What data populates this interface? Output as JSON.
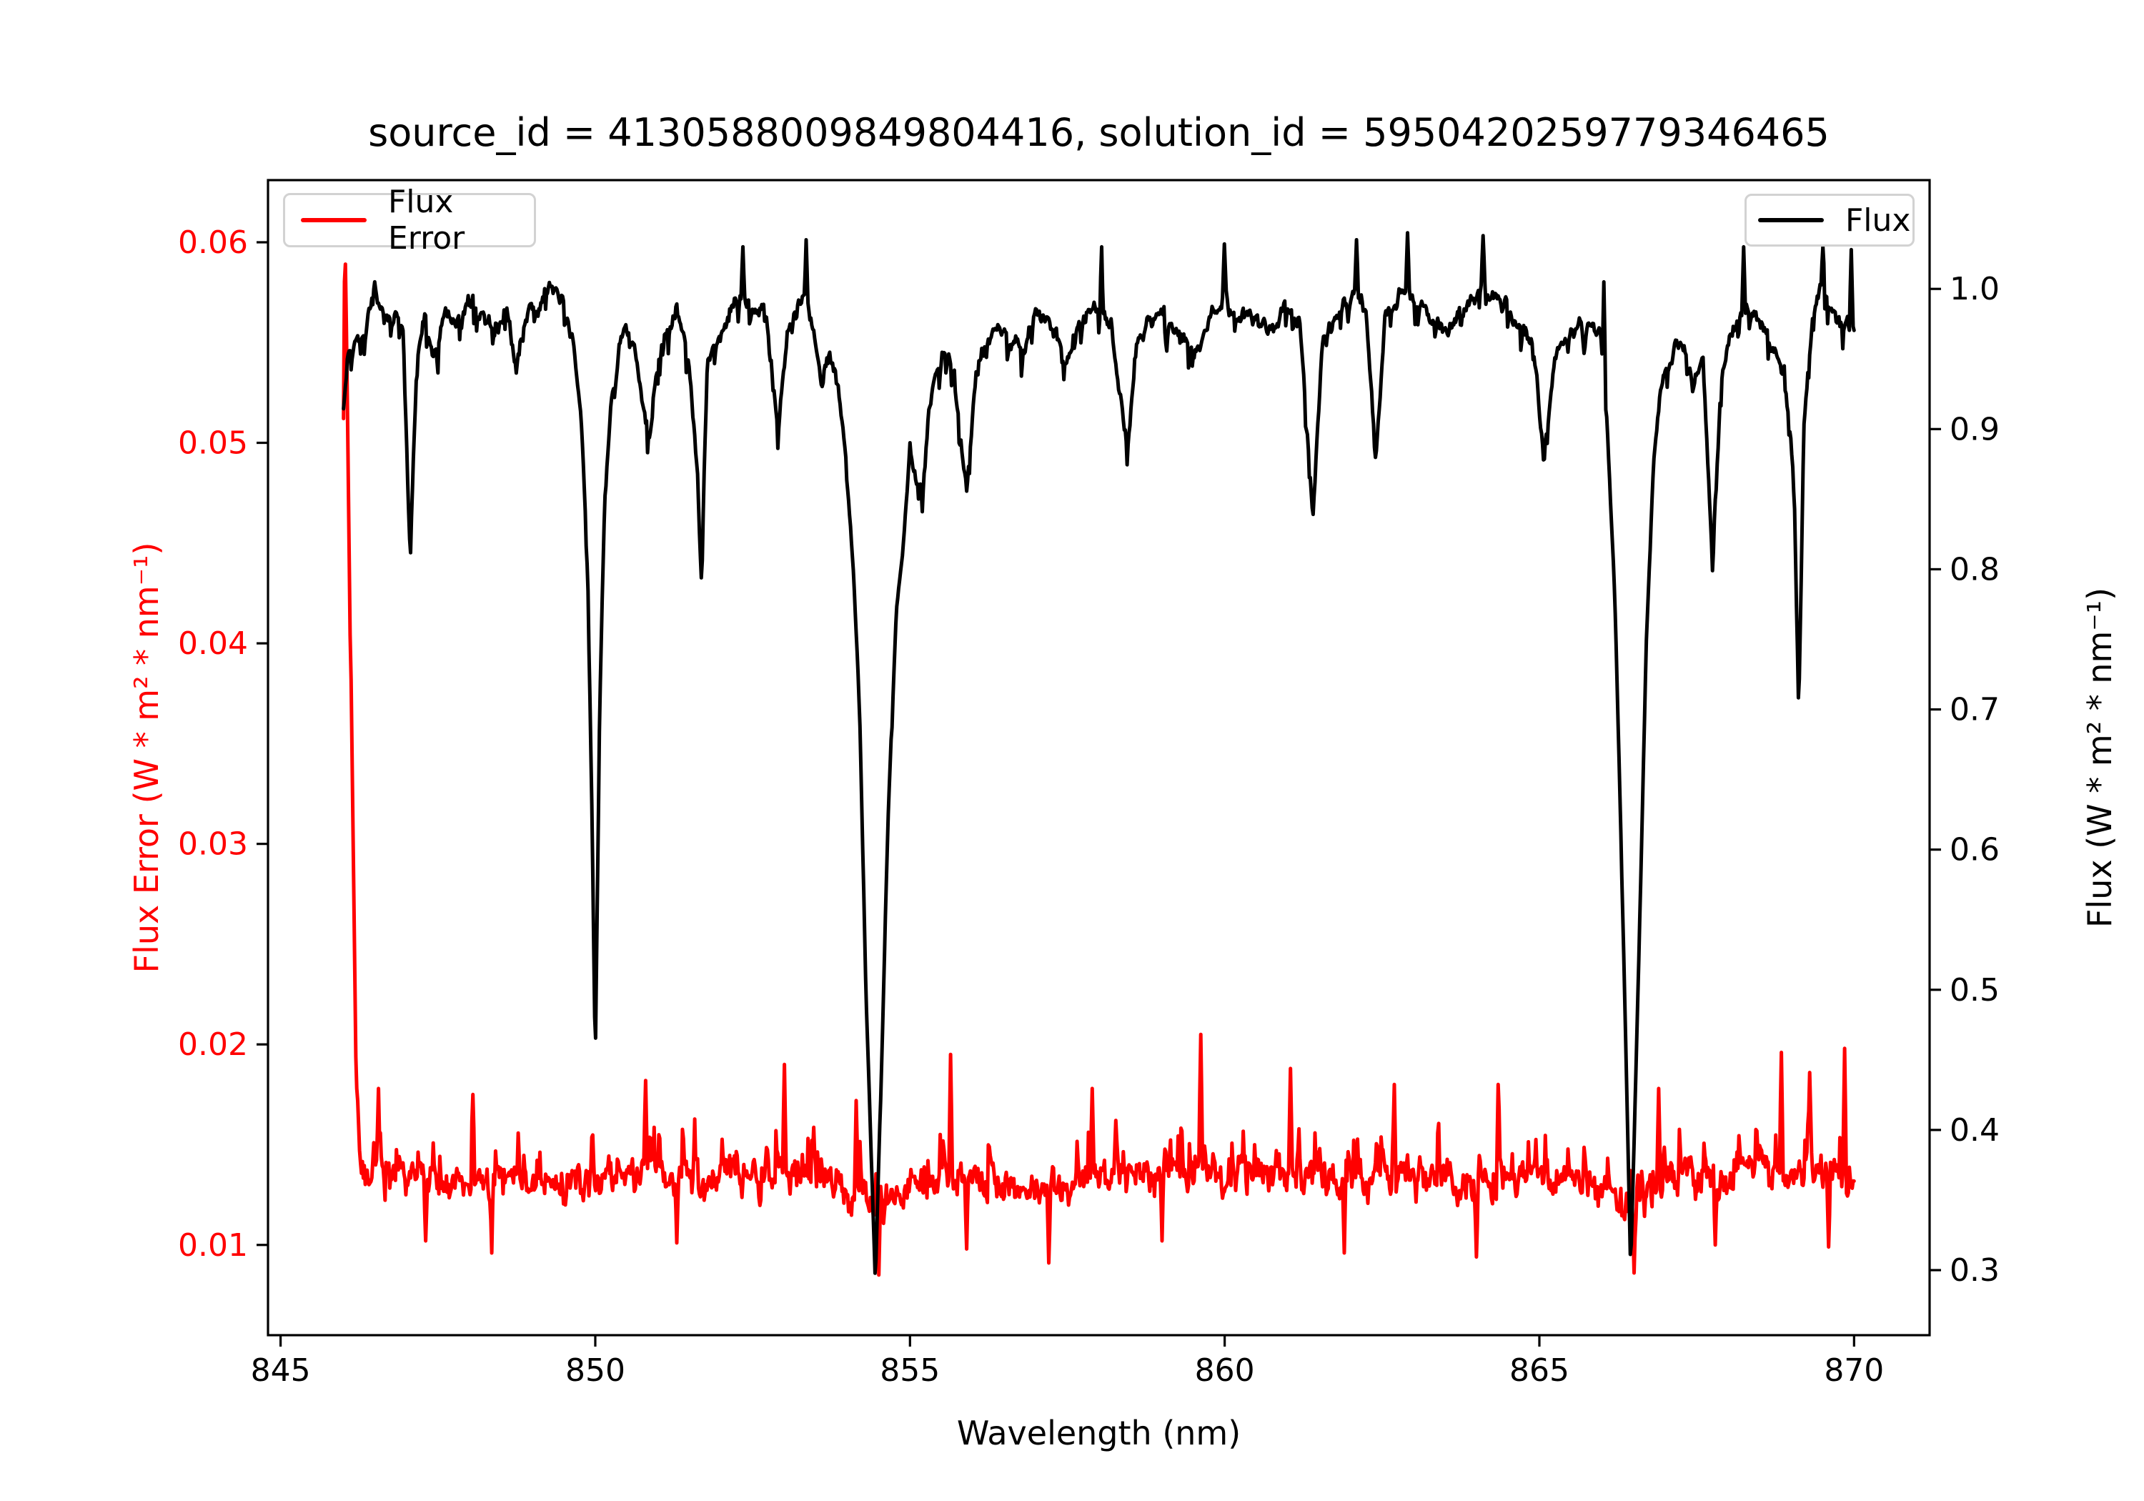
{
  "title": "source_id = 4130588009849804416, solution_id = 5950420259779346465",
  "legend": {
    "flux_error": {
      "label": "Flux Error",
      "color": "#ff0000"
    },
    "flux": {
      "label": "Flux",
      "color": "#000000"
    }
  },
  "axes": {
    "xlabel": "Wavelength (nm)",
    "ylabel_left": "Flux Error (W * m² * nm⁻¹)",
    "ylabel_right": "Flux (W * m² * nm⁻¹)",
    "left_axis_color": "#ff0000",
    "right_axis_color": "#000000",
    "spine_color": "#000000"
  },
  "chart_data": {
    "type": "line",
    "title": "source_id = 4130588009849804416, solution_id = 5950420259779346465",
    "xlabel": "Wavelength (nm)",
    "xlim": [
      844.8,
      871.2
    ],
    "ylim_left": [
      0.0055,
      0.0631
    ],
    "ylim_right": [
      0.2536,
      1.0776
    ],
    "xticks": [
      845,
      850,
      855,
      860,
      865,
      870
    ],
    "yticks_left": [
      0.01,
      0.02,
      0.03,
      0.04,
      0.05,
      0.06
    ],
    "yticks_right": [
      0.3,
      0.4,
      0.5,
      0.6,
      0.7,
      0.8,
      0.9,
      1.0
    ],
    "x_range_data": [
      846.0,
      870.0
    ],
    "absorption_line_centers_nm": [
      850.0,
      854.45,
      866.45
    ],
    "legend_entries": [
      "Flux Error",
      "Flux"
    ],
    "series": [
      {
        "name": "Flux Error",
        "color": "#ff0000",
        "yaxis": "left",
        "anchors": [
          [
            846.0,
            0.0513
          ],
          [
            846.02,
            0.0605
          ],
          [
            846.04,
            0.057
          ],
          [
            846.06,
            0.052
          ],
          [
            846.08,
            0.047
          ],
          [
            846.1,
            0.0415
          ],
          [
            846.12,
            0.038
          ],
          [
            846.14,
            0.033
          ],
          [
            846.17,
            0.026
          ],
          [
            846.2,
            0.0185
          ],
          [
            846.25,
            0.0148
          ],
          [
            846.3,
            0.0138
          ],
          [
            846.5,
            0.0133
          ],
          [
            847.0,
            0.0133
          ],
          [
            847.5,
            0.0131
          ],
          [
            848.0,
            0.0129
          ],
          [
            848.5,
            0.0133
          ],
          [
            849.0,
            0.0133
          ],
          [
            849.5,
            0.0131
          ],
          [
            850.0,
            0.013
          ],
          [
            850.5,
            0.0134
          ],
          [
            851.0,
            0.0136
          ],
          [
            851.5,
            0.0133
          ],
          [
            852.0,
            0.0132
          ],
          [
            852.5,
            0.0135
          ],
          [
            853.0,
            0.0136
          ],
          [
            853.5,
            0.0132
          ],
          [
            854.0,
            0.0128
          ],
          [
            854.45,
            0.0118
          ],
          [
            855.0,
            0.0128
          ],
          [
            855.5,
            0.0133
          ],
          [
            856.0,
            0.0134
          ],
          [
            856.5,
            0.0131
          ],
          [
            857.0,
            0.0128
          ],
          [
            857.5,
            0.0131
          ],
          [
            858.0,
            0.0133
          ],
          [
            858.5,
            0.0134
          ],
          [
            859.0,
            0.0135
          ],
          [
            859.5,
            0.0137
          ],
          [
            860.0,
            0.0136
          ],
          [
            860.5,
            0.0134
          ],
          [
            861.0,
            0.0136
          ],
          [
            861.5,
            0.0133
          ],
          [
            862.0,
            0.0132
          ],
          [
            862.5,
            0.0134
          ],
          [
            863.0,
            0.0133
          ],
          [
            863.5,
            0.0132
          ],
          [
            864.0,
            0.0131
          ],
          [
            864.5,
            0.0133
          ],
          [
            865.0,
            0.0134
          ],
          [
            865.5,
            0.0132
          ],
          [
            866.0,
            0.0128
          ],
          [
            866.45,
            0.0115
          ],
          [
            867.0,
            0.0132
          ],
          [
            867.5,
            0.0134
          ],
          [
            868.0,
            0.0135
          ],
          [
            868.5,
            0.0136
          ],
          [
            869.0,
            0.0137
          ],
          [
            869.5,
            0.0136
          ],
          [
            870.0,
            0.0135
          ]
        ],
        "noise_envelope": [
          [
            846.0,
            0.0004
          ],
          [
            846.22,
            0.0012
          ],
          [
            846.35,
            0.0022
          ],
          [
            870.0,
            0.0022
          ]
        ],
        "spikes": [
          [
            846.55,
            0.0178
          ],
          [
            848.05,
            0.0175
          ],
          [
            850.8,
            0.0182
          ],
          [
            853.0,
            0.019
          ],
          [
            854.15,
            0.0172
          ],
          [
            855.65,
            0.0195
          ],
          [
            857.9,
            0.0178
          ],
          [
            859.62,
            0.0205
          ],
          [
            861.05,
            0.0188
          ],
          [
            862.7,
            0.018
          ],
          [
            864.35,
            0.018
          ],
          [
            866.9,
            0.0178
          ],
          [
            868.85,
            0.0196
          ],
          [
            869.3,
            0.0186
          ],
          [
            869.85,
            0.0198
          ]
        ],
        "dips": [
          [
            847.3,
            0.0102
          ],
          [
            848.35,
            0.0096
          ],
          [
            851.3,
            0.0101
          ],
          [
            854.5,
            0.0085
          ],
          [
            855.9,
            0.0098
          ],
          [
            857.2,
            0.0091
          ],
          [
            859.0,
            0.0102
          ],
          [
            861.9,
            0.0096
          ],
          [
            864.0,
            0.0094
          ],
          [
            866.5,
            0.0086
          ],
          [
            867.8,
            0.01
          ],
          [
            869.6,
            0.0099
          ]
        ]
      },
      {
        "name": "Flux",
        "color": "#000000",
        "yaxis": "right",
        "anchors": [
          [
            846.0,
            0.915
          ],
          [
            846.05,
            0.94
          ],
          [
            846.1,
            0.955
          ],
          [
            846.2,
            0.962
          ],
          [
            846.35,
            0.975
          ],
          [
            846.5,
            1.0
          ],
          [
            846.65,
            0.978
          ],
          [
            846.8,
            0.985
          ],
          [
            846.95,
            0.97
          ],
          [
            847.06,
            0.805
          ],
          [
            847.18,
            0.965
          ],
          [
            847.3,
            0.978
          ],
          [
            847.43,
            0.95
          ],
          [
            847.6,
            0.985
          ],
          [
            847.8,
            0.975
          ],
          [
            848.0,
            0.99
          ],
          [
            848.2,
            0.98
          ],
          [
            848.45,
            0.972
          ],
          [
            848.6,
            0.988
          ],
          [
            848.74,
            0.94
          ],
          [
            848.9,
            0.982
          ],
          [
            849.1,
            0.99
          ],
          [
            849.3,
            1.005
          ],
          [
            849.5,
            0.988
          ],
          [
            849.65,
            0.96
          ],
          [
            849.77,
            0.915
          ],
          [
            849.88,
            0.8
          ],
          [
            849.95,
            0.62
          ],
          [
            850.0,
            0.448
          ],
          [
            850.07,
            0.7
          ],
          [
            850.15,
            0.85
          ],
          [
            850.25,
            0.92
          ],
          [
            850.4,
            0.965
          ],
          [
            850.55,
            0.975
          ],
          [
            850.72,
            0.928
          ],
          [
            850.88,
            0.895
          ],
          [
            851.0,
            0.955
          ],
          [
            851.15,
            0.975
          ],
          [
            851.3,
            0.985
          ],
          [
            851.5,
            0.945
          ],
          [
            851.62,
            0.87
          ],
          [
            851.68,
            0.8
          ],
          [
            851.78,
            0.945
          ],
          [
            851.95,
            0.965
          ],
          [
            852.1,
            0.978
          ],
          [
            852.3,
            0.995
          ],
          [
            852.5,
            0.982
          ],
          [
            852.7,
            0.985
          ],
          [
            852.9,
            0.9
          ],
          [
            853.05,
            0.97
          ],
          [
            853.2,
            0.985
          ],
          [
            853.35,
            0.995
          ],
          [
            853.5,
            0.962
          ],
          [
            853.6,
            0.93
          ],
          [
            853.72,
            0.955
          ],
          [
            853.88,
            0.922
          ],
          [
            854.0,
            0.87
          ],
          [
            854.1,
            0.8
          ],
          [
            854.2,
            0.7
          ],
          [
            854.3,
            0.5
          ],
          [
            854.45,
            0.29
          ],
          [
            854.55,
            0.45
          ],
          [
            854.65,
            0.62
          ],
          [
            854.78,
            0.77
          ],
          [
            854.9,
            0.82
          ],
          [
            855.0,
            0.885
          ],
          [
            855.1,
            0.862
          ],
          [
            855.2,
            0.858
          ],
          [
            855.3,
            0.91
          ],
          [
            855.42,
            0.945
          ],
          [
            855.55,
            0.955
          ],
          [
            855.7,
            0.94
          ],
          [
            855.9,
            0.855
          ],
          [
            856.05,
            0.945
          ],
          [
            856.2,
            0.962
          ],
          [
            856.4,
            0.975
          ],
          [
            856.6,
            0.962
          ],
          [
            856.8,
            0.955
          ],
          [
            857.0,
            0.982
          ],
          [
            857.2,
            0.975
          ],
          [
            857.35,
            0.962
          ],
          [
            857.5,
            0.945
          ],
          [
            857.65,
            0.975
          ],
          [
            857.8,
            0.982
          ],
          [
            858.0,
            0.988
          ],
          [
            858.2,
            0.975
          ],
          [
            858.45,
            0.885
          ],
          [
            858.6,
            0.962
          ],
          [
            858.75,
            0.975
          ],
          [
            859.0,
            0.985
          ],
          [
            859.2,
            0.972
          ],
          [
            859.4,
            0.96
          ],
          [
            859.6,
            0.958
          ],
          [
            859.8,
            0.985
          ],
          [
            860.0,
            0.992
          ],
          [
            860.2,
            0.975
          ],
          [
            860.4,
            0.985
          ],
          [
            860.6,
            0.972
          ],
          [
            860.8,
            0.968
          ],
          [
            861.0,
            0.988
          ],
          [
            861.2,
            0.975
          ],
          [
            861.4,
            0.838
          ],
          [
            861.55,
            0.962
          ],
          [
            861.7,
            0.975
          ],
          [
            861.9,
            0.988
          ],
          [
            862.1,
            0.998
          ],
          [
            862.25,
            0.985
          ],
          [
            862.4,
            0.873
          ],
          [
            862.55,
            0.982
          ],
          [
            862.7,
            0.99
          ],
          [
            862.9,
            1.0
          ],
          [
            863.1,
            0.99
          ],
          [
            863.3,
            0.978
          ],
          [
            863.5,
            0.972
          ],
          [
            863.7,
            0.982
          ],
          [
            863.9,
            0.99
          ],
          [
            864.1,
            1.005
          ],
          [
            864.3,
            0.995
          ],
          [
            864.5,
            0.985
          ],
          [
            864.7,
            0.972
          ],
          [
            864.9,
            0.962
          ],
          [
            865.07,
            0.877
          ],
          [
            865.25,
            0.955
          ],
          [
            865.45,
            0.968
          ],
          [
            865.6,
            0.975
          ],
          [
            865.8,
            0.972
          ],
          [
            865.97,
            0.968
          ],
          [
            866.08,
            0.9
          ],
          [
            866.2,
            0.78
          ],
          [
            866.33,
            0.55
          ],
          [
            866.45,
            0.3
          ],
          [
            866.58,
            0.52
          ],
          [
            866.7,
            0.75
          ],
          [
            866.82,
            0.88
          ],
          [
            866.95,
            0.935
          ],
          [
            867.1,
            0.955
          ],
          [
            867.3,
            0.962
          ],
          [
            867.45,
            0.93
          ],
          [
            867.6,
            0.952
          ],
          [
            867.75,
            0.8
          ],
          [
            867.9,
            0.945
          ],
          [
            868.1,
            0.975
          ],
          [
            868.3,
            0.988
          ],
          [
            868.5,
            0.975
          ],
          [
            868.7,
            0.962
          ],
          [
            868.9,
            0.94
          ],
          [
            869.05,
            0.86
          ],
          [
            869.12,
            0.695
          ],
          [
            869.2,
            0.9
          ],
          [
            869.35,
            0.985
          ],
          [
            869.5,
            1.01
          ],
          [
            869.65,
            0.985
          ],
          [
            869.8,
            0.975
          ],
          [
            869.9,
            0.982
          ],
          [
            870.0,
            0.968
          ]
        ],
        "noise_envelope": [
          [
            846.0,
            0.014
          ],
          [
            849.7,
            0.014
          ],
          [
            849.95,
            0.003
          ],
          [
            850.1,
            0.006
          ],
          [
            850.3,
            0.014
          ],
          [
            853.8,
            0.013
          ],
          [
            854.2,
            0.0035
          ],
          [
            854.75,
            0.006
          ],
          [
            855.1,
            0.01
          ],
          [
            855.4,
            0.014
          ],
          [
            865.9,
            0.012
          ],
          [
            866.25,
            0.0035
          ],
          [
            866.75,
            0.007
          ],
          [
            867.0,
            0.014
          ],
          [
            870.0,
            0.014
          ]
        ],
        "spikes": [
          [
            846.5,
            1.005
          ],
          [
            852.35,
            1.03
          ],
          [
            853.35,
            1.035
          ],
          [
            858.05,
            1.03
          ],
          [
            860.0,
            1.032
          ],
          [
            862.1,
            1.035
          ],
          [
            862.9,
            1.04
          ],
          [
            864.1,
            1.038
          ],
          [
            866.02,
            1.005
          ],
          [
            868.25,
            1.03
          ],
          [
            869.5,
            1.03
          ],
          [
            869.95,
            1.028
          ]
        ],
        "dips": []
      }
    ]
  }
}
